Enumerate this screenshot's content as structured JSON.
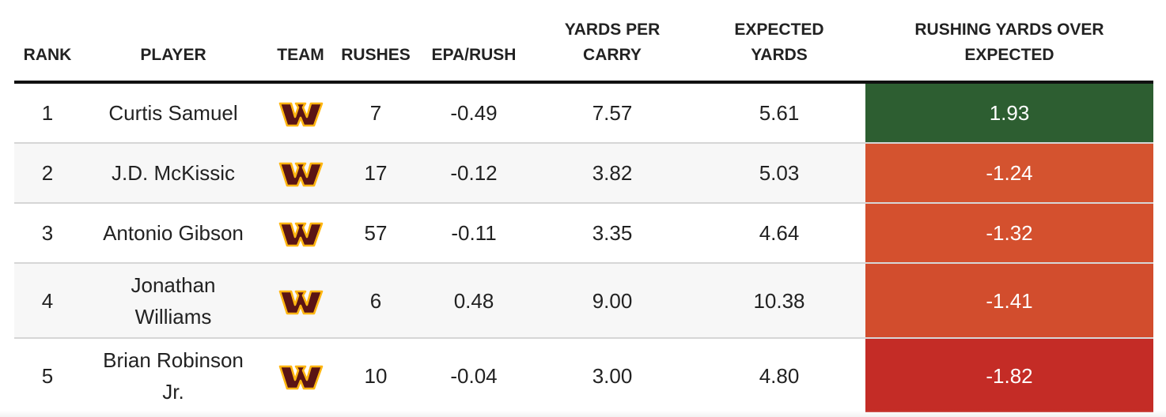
{
  "table": {
    "headers": {
      "rank": "RANK",
      "player": "PLAYER",
      "team": "TEAM",
      "rushes": "RUSHES",
      "epa": "EPA/RUSH",
      "ypc": "YARDS PER CARRY",
      "expected": "EXPECTED YARDS",
      "ryoe": "RUSHING YARDS OVER EXPECTED"
    },
    "team_logo_icon": "washington-commanders-w-logo-icon",
    "rows": [
      {
        "rank": "1",
        "player": "Curtis Samuel",
        "rushes": "7",
        "epa": "-0.49",
        "ypc": "7.57",
        "expected": "5.61",
        "ryoe": "1.93",
        "ryoe_color": "#2d5e31"
      },
      {
        "rank": "2",
        "player": "J.D. McKissic",
        "rushes": "17",
        "epa": "-0.12",
        "ypc": "3.82",
        "expected": "5.03",
        "ryoe": "-1.24",
        "ryoe_color": "#d4532f"
      },
      {
        "rank": "3",
        "player": "Antonio Gibson",
        "rushes": "57",
        "epa": "-0.11",
        "ypc": "3.35",
        "expected": "4.64",
        "ryoe": "-1.32",
        "ryoe_color": "#d4502e"
      },
      {
        "rank": "4",
        "player": "Jonathan Williams",
        "rushes": "6",
        "epa": "0.48",
        "ypc": "9.00",
        "expected": "10.38",
        "ryoe": "-1.41",
        "ryoe_color": "#d24d2d"
      },
      {
        "rank": "5",
        "player": "Brian Robinson Jr.",
        "rushes": "10",
        "epa": "-0.04",
        "ypc": "3.00",
        "expected": "4.80",
        "ryoe": "-1.82",
        "ryoe_color": "#c42c26"
      }
    ],
    "colors": {
      "logo_burgundy": "#5a1414",
      "logo_gold": "#ffb612",
      "header_rule": "#111111",
      "row_divider": "#d6d6d6"
    }
  },
  "chart_data": {
    "type": "table",
    "columns": [
      "RANK",
      "PLAYER",
      "TEAM",
      "RUSHES",
      "EPA/RUSH",
      "YARDS PER CARRY",
      "EXPECTED YARDS",
      "RUSHING YARDS OVER EXPECTED"
    ],
    "rows": [
      [
        1,
        "Curtis Samuel",
        "washington-commanders-w-logo-icon",
        7,
        -0.49,
        7.57,
        5.61,
        1.93
      ],
      [
        2,
        "J.D. McKissic",
        "washington-commanders-w-logo-icon",
        17,
        -0.12,
        3.82,
        5.03,
        -1.24
      ],
      [
        3,
        "Antonio Gibson",
        "washington-commanders-w-logo-icon",
        57,
        -0.11,
        3.35,
        4.64,
        -1.32
      ],
      [
        4,
        "Jonathan Williams",
        "washington-commanders-w-logo-icon",
        6,
        0.48,
        9.0,
        10.38,
        -1.41
      ],
      [
        5,
        "Brian Robinson Jr.",
        "washington-commanders-w-logo-icon",
        10,
        -0.04,
        3.0,
        4.8,
        -1.82
      ]
    ],
    "color_scale_column": "RUSHING YARDS OVER EXPECTED",
    "color_scale": {
      "positive": "#2d5e31",
      "negative": "#c42c26"
    }
  }
}
